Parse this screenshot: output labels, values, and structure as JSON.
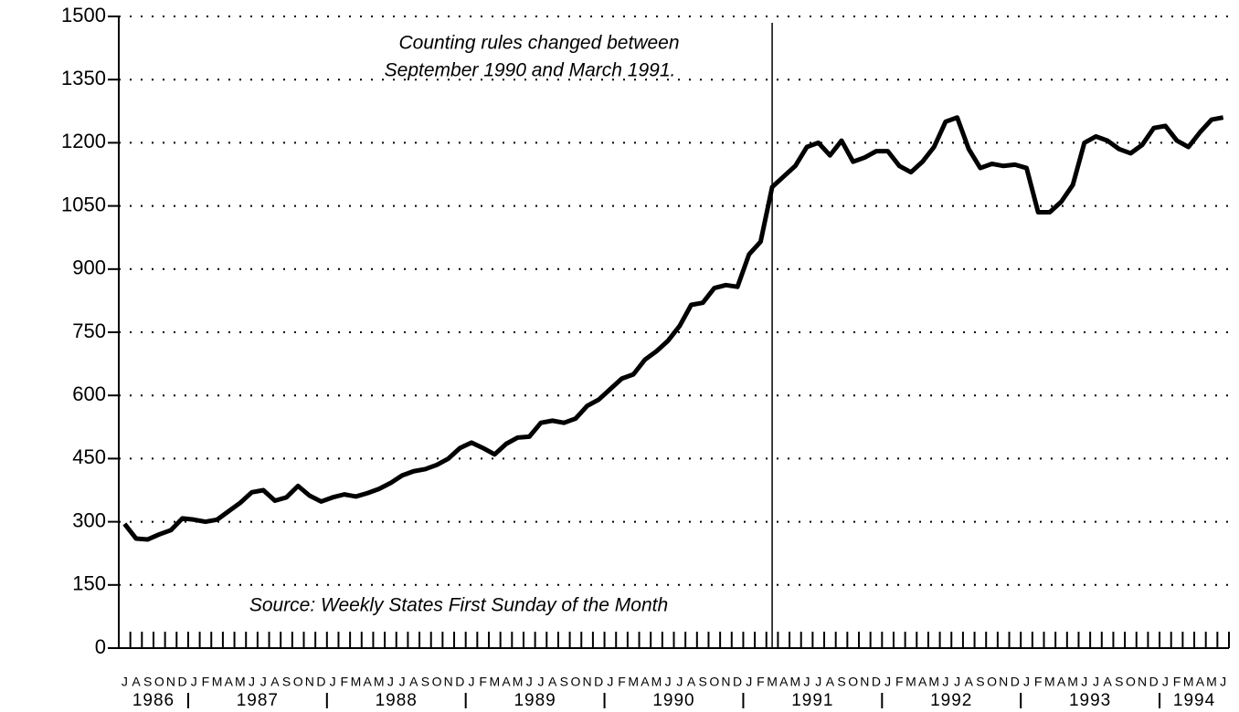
{
  "chart_data": {
    "type": "line",
    "annotations": [
      "Counting rules changed between",
      "September 1990 and March 1991.",
      "Source: Weekly States First Sunday of the Month"
    ],
    "categories": [
      "J",
      "A",
      "S",
      "O",
      "N",
      "D",
      "J",
      "F",
      "M",
      "A",
      "M",
      "J",
      "J",
      "A",
      "S",
      "O",
      "N",
      "D",
      "J",
      "F",
      "M",
      "A",
      "M",
      "J",
      "J",
      "A",
      "S",
      "O",
      "N",
      "D",
      "J",
      "F",
      "M",
      "A",
      "M",
      "J",
      "J",
      "A",
      "S",
      "O",
      "N",
      "D",
      "J",
      "F",
      "M",
      "A",
      "M",
      "J",
      "J",
      "A",
      "S",
      "O",
      "N",
      "D",
      "J",
      "F",
      "M",
      "A",
      "M",
      "J",
      "J",
      "A",
      "S",
      "O",
      "N",
      "D",
      "J",
      "F",
      "M",
      "A",
      "M",
      "J",
      "J",
      "A",
      "S",
      "O",
      "N",
      "D",
      "J",
      "F",
      "M",
      "A",
      "M",
      "J",
      "J",
      "A",
      "S",
      "O",
      "N",
      "D",
      "J",
      "F",
      "M",
      "A",
      "M",
      "J"
    ],
    "years": [
      "1986",
      "1987",
      "1988",
      "1989",
      "1990",
      "1991",
      "1992",
      "1993",
      "1994"
    ],
    "series": [
      {
        "color": "#000000",
        "values": [
          295,
          260,
          258,
          270,
          280,
          308,
          305,
          300,
          305,
          325,
          345,
          370,
          375,
          350,
          358,
          385,
          362,
          348,
          358,
          365,
          360,
          368,
          378,
          392,
          410,
          420,
          425,
          435,
          450,
          475,
          488,
          475,
          460,
          485,
          500,
          502,
          535,
          540,
          535,
          545,
          575,
          590,
          615,
          640,
          650,
          685,
          705,
          730,
          765,
          815,
          820,
          855,
          862,
          858,
          935,
          965,
          1095,
          1120,
          1145,
          1190,
          1200,
          1170,
          1205,
          1155,
          1165,
          1180,
          1180,
          1145,
          1130,
          1155,
          1190,
          1250,
          1260,
          1185,
          1140,
          1150,
          1145,
          1148,
          1140,
          1035,
          1035,
          1060,
          1100,
          1200,
          1215,
          1205,
          1185,
          1175,
          1195,
          1235,
          1240,
          1205,
          1190,
          1225,
          1255,
          1260
        ]
      }
    ],
    "ylim": [
      0,
      1500
    ],
    "yticks": [
      0,
      150,
      300,
      450,
      600,
      750,
      900,
      1050,
      1200,
      1350,
      1500
    ],
    "grid": true
  }
}
